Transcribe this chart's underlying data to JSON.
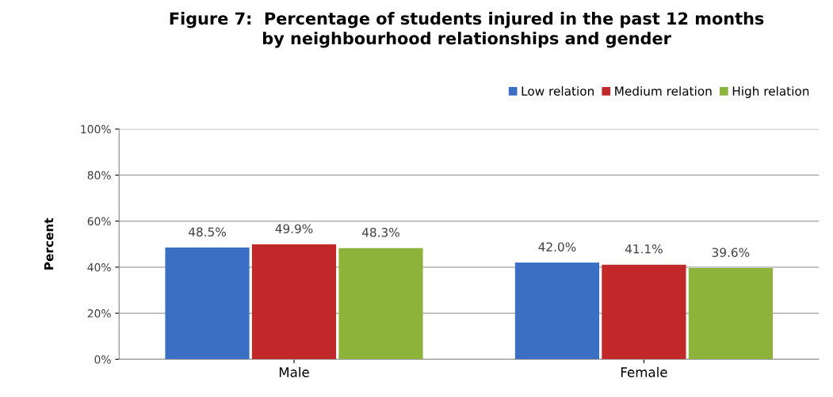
{
  "chart_data": {
    "type": "bar",
    "title": "Figure 7:  Percentage of students injured in the past 12 months\nby neighbourhood relationships and gender",
    "ylabel": "Percent",
    "categories": [
      "Male",
      "Female"
    ],
    "series": [
      {
        "name": "Low relation",
        "color": "#3a6fc4",
        "values": [
          48.5,
          42.0
        ],
        "value_labels": [
          "48.5%",
          "42.0%"
        ]
      },
      {
        "name": "Medium relation",
        "color": "#c0282a",
        "values": [
          49.9,
          41.1
        ],
        "value_labels": [
          "49.9%",
          "41.1%"
        ]
      },
      {
        "name": "High relation",
        "color": "#8db33a",
        "values": [
          48.3,
          39.6
        ],
        "value_labels": [
          "48.3%",
          "39.6%"
        ]
      }
    ],
    "ylim": [
      0,
      100
    ],
    "yticks": [
      {
        "value": 0,
        "label": "0%"
      },
      {
        "value": 20,
        "label": "20%"
      },
      {
        "value": 40,
        "label": "40%"
      },
      {
        "value": 60,
        "label": "60%"
      },
      {
        "value": 80,
        "label": "80%"
      },
      {
        "value": 100,
        "label": "100%"
      }
    ],
    "grid": "y",
    "legend": "top right"
  }
}
